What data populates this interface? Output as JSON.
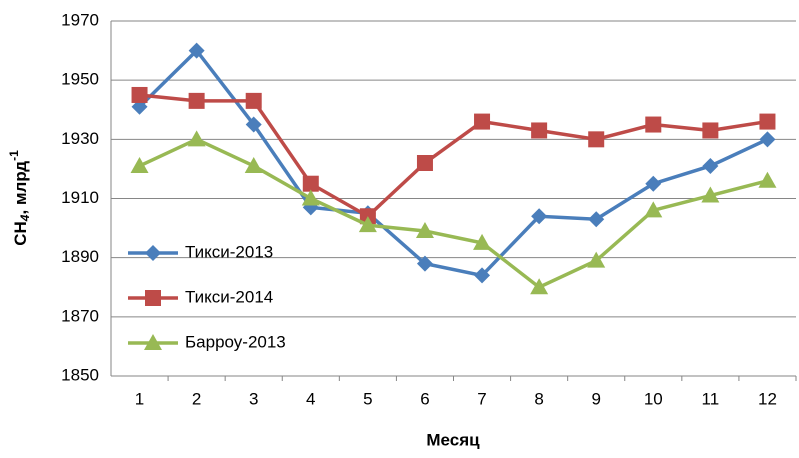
{
  "chart_data": {
    "type": "line",
    "xlabel": "Месяц",
    "ylabel": [
      "CH",
      "4",
      ",  млрд",
      "-1"
    ],
    "categories": [
      "1",
      "2",
      "3",
      "4",
      "5",
      "6",
      "7",
      "8",
      "9",
      "10",
      "11",
      "12"
    ],
    "series": [
      {
        "name": "Тикси-2013",
        "color": "#4a7ebb",
        "marker": "diamond",
        "values": [
          1941,
          1960,
          1935,
          1907,
          1905,
          1888,
          1884,
          1904,
          1903,
          1915,
          1921,
          1930
        ]
      },
      {
        "name": "Тикси-2014",
        "color": "#be4b48",
        "marker": "square",
        "values": [
          1945,
          1943,
          1943,
          1915,
          1904,
          1922,
          1936,
          1933,
          1930,
          1935,
          1933,
          1936
        ]
      },
      {
        "name": "Барроу-2013",
        "color": "#98b954",
        "marker": "triangle",
        "values": [
          1921,
          1930,
          1921,
          1910,
          1901,
          1899,
          1895,
          1880,
          1889,
          1906,
          1911,
          1916
        ]
      }
    ],
    "ylim": [
      1850,
      1970
    ],
    "yticks": [
      1850,
      1870,
      1890,
      1910,
      1930,
      1950,
      1970
    ],
    "grid": true,
    "legend": "left"
  }
}
